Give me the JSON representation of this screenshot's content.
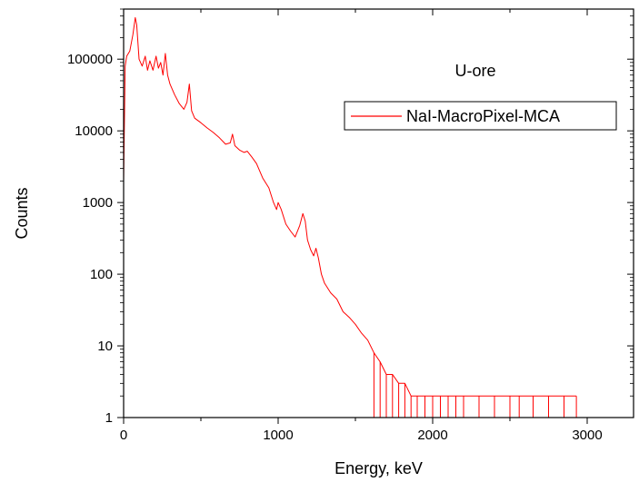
{
  "chart_data": {
    "type": "line",
    "title": "",
    "annotation": "U-ore",
    "xlabel": "Energy, keV",
    "ylabel": "Counts",
    "xlim": [
      0,
      3300
    ],
    "ylim": [
      1,
      500000
    ],
    "y_scale": "log",
    "x_ticks": [
      0,
      1000,
      2000,
      3000
    ],
    "x_tick_labels": [
      "0",
      "1000",
      "2000",
      "3000"
    ],
    "y_ticks": [
      1,
      10,
      100,
      1000,
      10000,
      100000
    ],
    "y_tick_labels": [
      "1",
      "10",
      "100",
      "1000",
      "10000",
      "100000"
    ],
    "grid": false,
    "legend": {
      "placement": "top-right"
    },
    "series": [
      {
        "name": "NaI-MacroPixel-MCA",
        "color": "#ff0000",
        "x": [
          0,
          10,
          20,
          40,
          60,
          75,
          85,
          100,
          120,
          140,
          155,
          170,
          190,
          210,
          225,
          240,
          255,
          270,
          285,
          300,
          330,
          360,
          390,
          410,
          425,
          440,
          460,
          500,
          540,
          580,
          620,
          660,
          690,
          705,
          720,
          750,
          780,
          800,
          830,
          860,
          900,
          940,
          970,
          990,
          1000,
          1020,
          1050,
          1080,
          1110,
          1140,
          1160,
          1175,
          1190,
          1210,
          1230,
          1245,
          1260,
          1280,
          1300,
          1340,
          1380,
          1420,
          1460,
          1500,
          1540,
          1580,
          1620,
          1660,
          1700,
          1740,
          1780,
          1820,
          1860,
          1900,
          1950,
          2000,
          2050,
          2100,
          2150,
          2200,
          2300,
          2400,
          2500,
          2560,
          2650,
          2750,
          2850,
          2930
        ],
        "y": [
          2000,
          80000,
          110000,
          130000,
          220000,
          380000,
          300000,
          100000,
          80000,
          110000,
          70000,
          95000,
          70000,
          110000,
          75000,
          90000,
          60000,
          120000,
          60000,
          45000,
          32000,
          24000,
          20000,
          25000,
          45000,
          19000,
          15000,
          13000,
          11000,
          9500,
          8000,
          6500,
          6800,
          9000,
          6200,
          5400,
          5000,
          5200,
          4300,
          3500,
          2200,
          1600,
          1000,
          800,
          1000,
          800,
          500,
          400,
          330,
          480,
          700,
          550,
          300,
          220,
          180,
          230,
          170,
          100,
          75,
          55,
          45,
          30,
          25,
          20,
          15,
          12,
          8,
          6,
          4,
          4,
          3,
          3,
          2,
          2,
          2,
          2,
          2,
          2,
          2,
          2,
          2,
          2,
          2,
          2,
          2,
          2,
          2,
          2
        ]
      }
    ]
  }
}
